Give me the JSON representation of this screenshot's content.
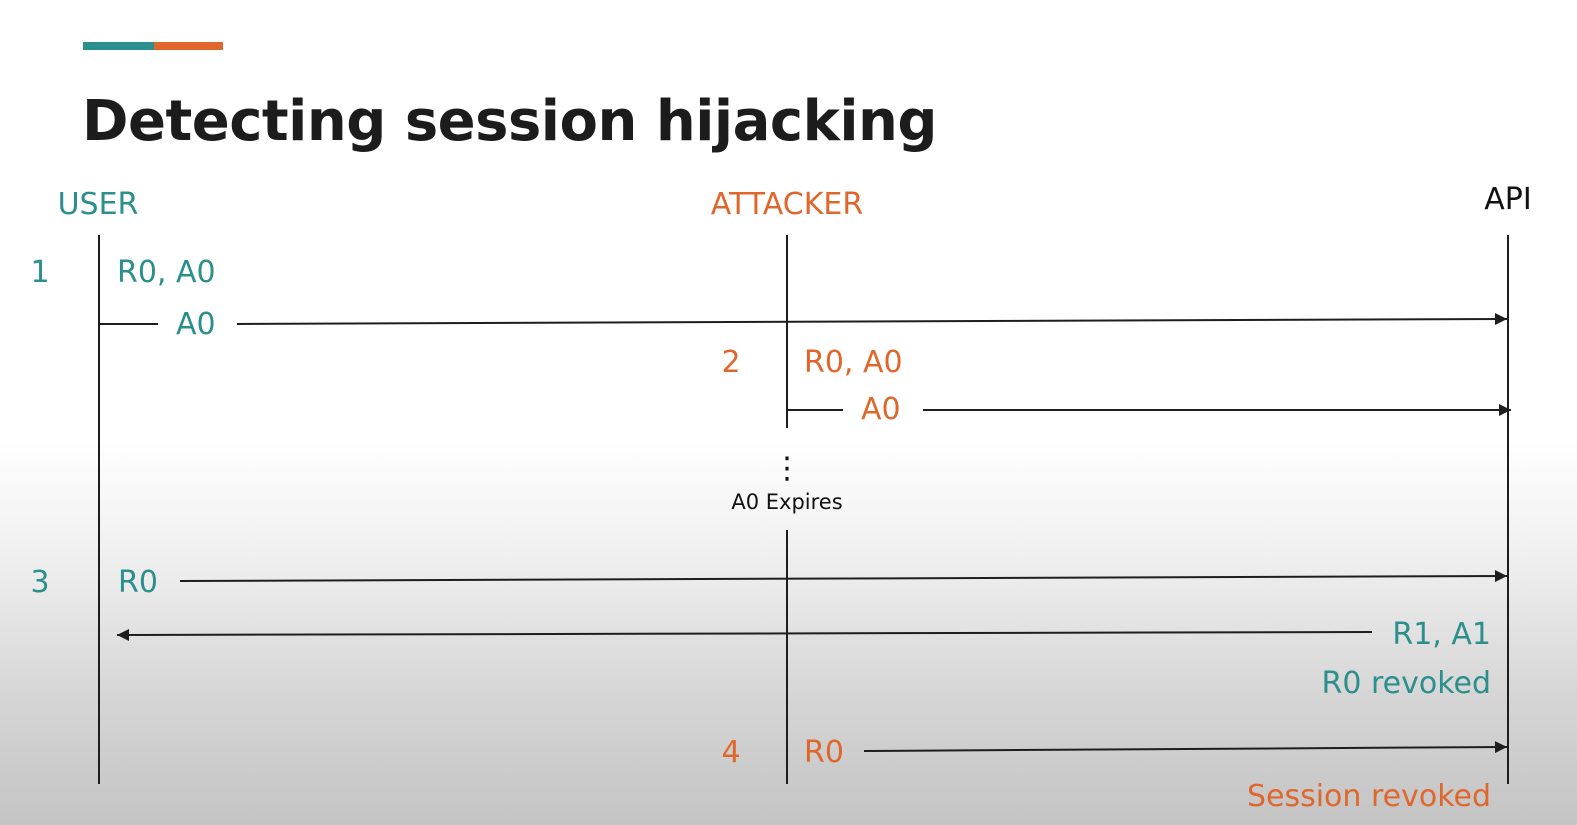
{
  "slide": {
    "title": "Detecting session hijacking"
  },
  "colors": {
    "title": "#1c1c1c",
    "user": "#2b8f8d",
    "attacker": "#e0672c",
    "api": "#111111",
    "line": "#1e1e1e",
    "accent_teal": "#2b8f8d",
    "accent_orange": "#e0672c"
  },
  "participants": {
    "user": "USER",
    "attacker": "ATTACKER",
    "api": "API"
  },
  "steps": {
    "s1": {
      "number": "1",
      "tokens": "R0, A0",
      "message": "A0"
    },
    "s2": {
      "number": "2",
      "tokens": "R0, A0",
      "message": "A0"
    },
    "expiry": {
      "ellipsis": "⋮",
      "label": "A0 Expires"
    },
    "s3": {
      "number": "3",
      "message": "R0",
      "response": "R1, A1",
      "note": "R0 revoked"
    },
    "s4": {
      "number": "4",
      "message": "R0",
      "note": "Session revoked"
    }
  }
}
